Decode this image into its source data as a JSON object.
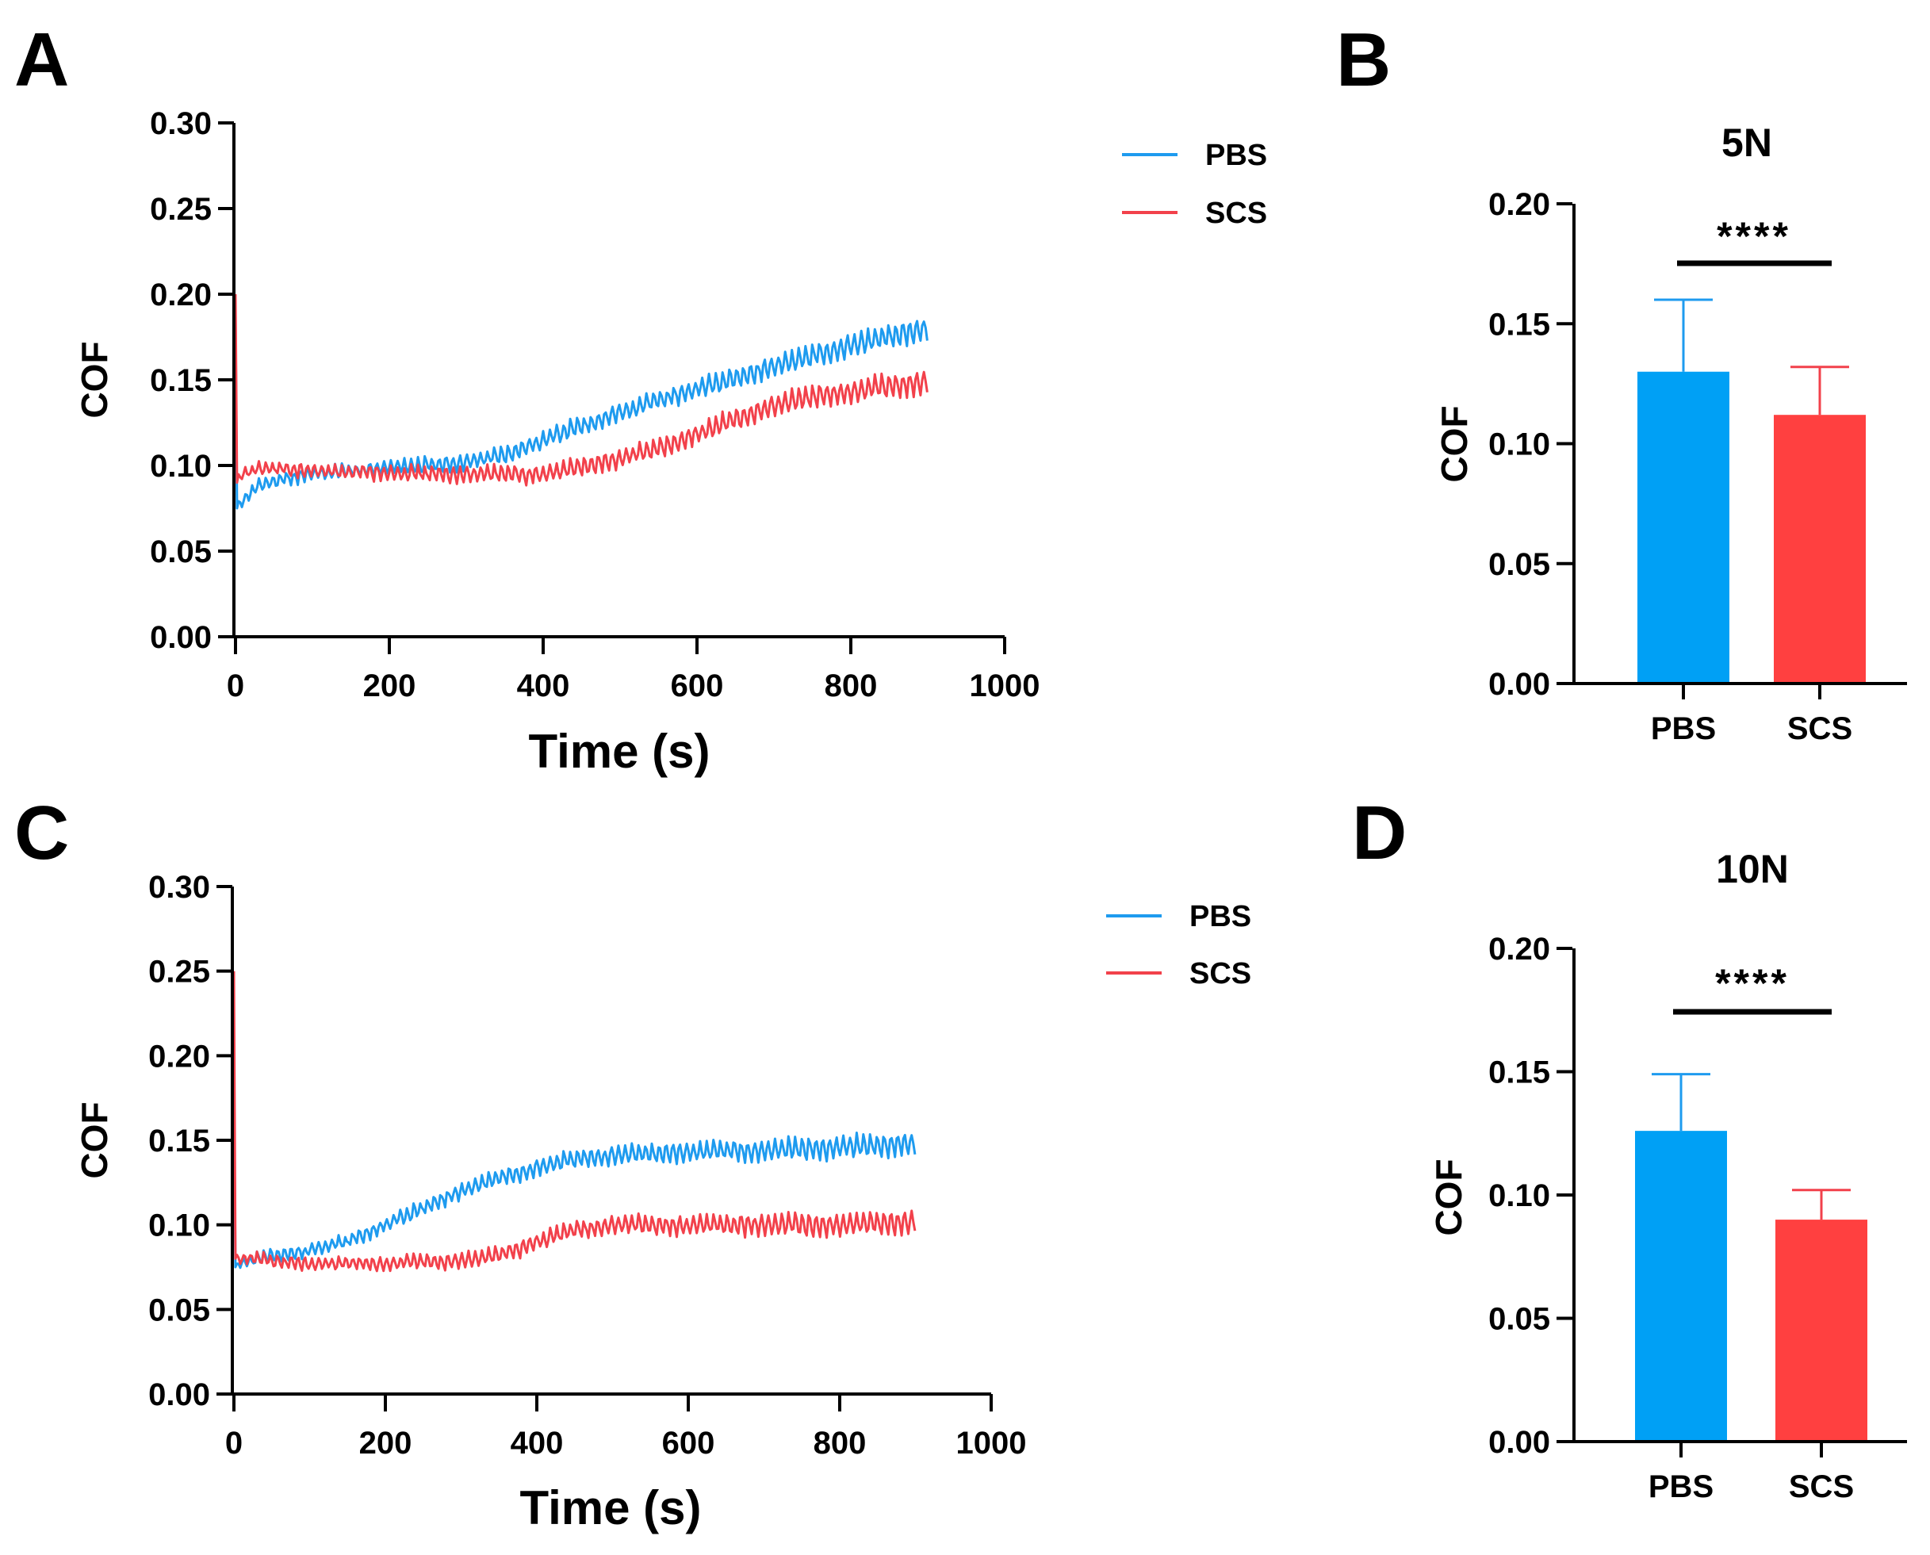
{
  "colors": {
    "PBS": "#1e9bef",
    "SCS": "#f2414b",
    "PBS_bar": "#00a0f5",
    "SCS_bar": "#ff4040"
  },
  "chart_data": [
    {
      "panel": "A",
      "type": "line",
      "title": "",
      "xlabel": "Time (s)",
      "ylabel": "COF",
      "xlim": [
        0,
        1000
      ],
      "ylim": [
        0,
        0.3
      ],
      "xticks": [
        "0",
        "200",
        "400",
        "600",
        "800",
        "1000"
      ],
      "yticks": [
        "0.00",
        "0.05",
        "0.10",
        "0.15",
        "0.20",
        "0.25",
        "0.30"
      ],
      "legend_position": "top-right",
      "series": [
        {
          "name": "PBS",
          "color": "#1e9bef",
          "x": [
            0,
            2,
            10,
            30,
            60,
            100,
            150,
            200,
            250,
            300,
            350,
            400,
            450,
            500,
            550,
            600,
            650,
            700,
            750,
            800,
            850,
            900
          ],
          "y": [
            0.19,
            0.075,
            0.08,
            0.088,
            0.092,
            0.095,
            0.097,
            0.099,
            0.1,
            0.102,
            0.106,
            0.115,
            0.123,
            0.131,
            0.138,
            0.145,
            0.151,
            0.158,
            0.164,
            0.17,
            0.175,
            0.18
          ]
        },
        {
          "name": "SCS",
          "color": "#f2414b",
          "x": [
            0,
            2,
            10,
            30,
            60,
            100,
            150,
            200,
            250,
            300,
            350,
            400,
            450,
            500,
            550,
            600,
            650,
            700,
            750,
            800,
            850,
            900
          ],
          "y": [
            0.2,
            0.09,
            0.095,
            0.098,
            0.098,
            0.097,
            0.096,
            0.096,
            0.095,
            0.095,
            0.095,
            0.095,
            0.099,
            0.104,
            0.11,
            0.118,
            0.127,
            0.135,
            0.14,
            0.143,
            0.146,
            0.149
          ]
        }
      ]
    },
    {
      "panel": "B",
      "type": "bar",
      "title": "5N",
      "ylabel": "COF",
      "ylim": [
        0,
        0.2
      ],
      "yticks": [
        "0.00",
        "0.05",
        "0.10",
        "0.15",
        "0.20"
      ],
      "categories": [
        "PBS",
        "SCS"
      ],
      "values": [
        0.13,
        0.112
      ],
      "errors": [
        0.03,
        0.02
      ],
      "significance": "****"
    },
    {
      "panel": "C",
      "type": "line",
      "title": "",
      "xlabel": "Time (s)",
      "ylabel": "COF",
      "xlim": [
        0,
        1000
      ],
      "ylim": [
        0,
        0.3
      ],
      "xticks": [
        "0",
        "200",
        "400",
        "600",
        "800",
        "1000"
      ],
      "yticks": [
        "0.00",
        "0.05",
        "0.10",
        "0.15",
        "0.20",
        "0.25",
        "0.30"
      ],
      "legend_position": "top-right",
      "series": [
        {
          "name": "PBS",
          "color": "#1e9bef",
          "x": [
            0,
            2,
            10,
            30,
            60,
            100,
            150,
            200,
            250,
            300,
            350,
            400,
            450,
            500,
            550,
            600,
            650,
            700,
            750,
            800,
            850,
            900
          ],
          "y": [
            0.19,
            0.075,
            0.077,
            0.08,
            0.082,
            0.085,
            0.09,
            0.1,
            0.11,
            0.12,
            0.128,
            0.134,
            0.139,
            0.141,
            0.142,
            0.143,
            0.144,
            0.144,
            0.145,
            0.146,
            0.147,
            0.148
          ]
        },
        {
          "name": "SCS",
          "color": "#f2414b",
          "x": [
            0,
            2,
            10,
            30,
            60,
            100,
            150,
            200,
            250,
            300,
            350,
            400,
            450,
            500,
            550,
            600,
            650,
            700,
            750,
            800,
            850,
            900
          ],
          "y": [
            0.25,
            0.08,
            0.08,
            0.08,
            0.078,
            0.077,
            0.077,
            0.077,
            0.078,
            0.079,
            0.082,
            0.09,
            0.097,
            0.1,
            0.1,
            0.1,
            0.1,
            0.1,
            0.1,
            0.1,
            0.101,
            0.102
          ]
        }
      ]
    },
    {
      "panel": "D",
      "type": "bar",
      "title": "10N",
      "ylabel": "COF",
      "ylim": [
        0,
        0.2
      ],
      "yticks": [
        "0.00",
        "0.05",
        "0.10",
        "0.15",
        "0.20"
      ],
      "categories": [
        "PBS",
        "SCS"
      ],
      "values": [
        0.126,
        0.09
      ],
      "errors": [
        0.023,
        0.012
      ],
      "significance": "****"
    }
  ]
}
